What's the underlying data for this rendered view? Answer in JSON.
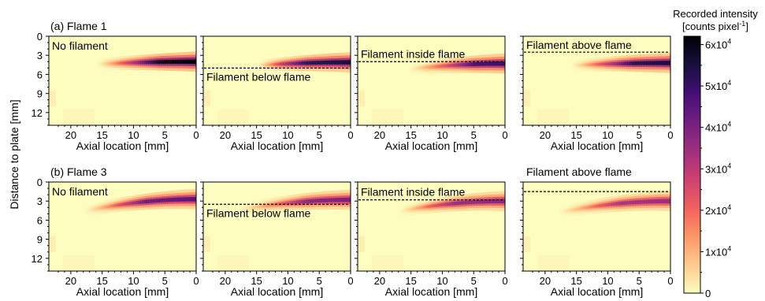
{
  "figure": {
    "ylabel": "Distance to plate [mm]",
    "xlabel": "Axial location [mm]"
  },
  "colorbar": {
    "title_line1": "Recorded intensity",
    "title_line2_prefix": "[counts pixel",
    "title_line2_sup": "-1",
    "title_line2_suffix": "]",
    "ticks": [
      {
        "value": 0,
        "mantissa": "0",
        "exp": ""
      },
      {
        "value": 10000,
        "mantissa": "1x10",
        "exp": "4"
      },
      {
        "value": 20000,
        "mantissa": "2x10",
        "exp": "4"
      },
      {
        "value": 30000,
        "mantissa": "3x10",
        "exp": "4"
      },
      {
        "value": 40000,
        "mantissa": "4x10",
        "exp": "4"
      },
      {
        "value": 50000,
        "mantissa": "5x10",
        "exp": "4"
      },
      {
        "value": 60000,
        "mantissa": "6x10",
        "exp": "4"
      }
    ],
    "range": [
      0,
      62000
    ],
    "colormap": [
      "#fcfdbf",
      "#feca8d",
      "#fd9668",
      "#f1605d",
      "#cd4071",
      "#9e2f7f",
      "#721f81",
      "#440f76",
      "#180f3d",
      "#000004"
    ]
  },
  "chart_data": {
    "type": "heatmap",
    "xlabel": "Axial location [mm]",
    "ylabel": "Distance to plate [mm]",
    "xlim": [
      23.5,
      0
    ],
    "ylim": [
      0,
      14
    ],
    "xticks": [
      20,
      15,
      10,
      5,
      0
    ],
    "yticks": [
      0,
      3,
      6,
      9,
      12
    ],
    "colorbar_label": "Recorded intensity [counts pixel-1]",
    "rows": [
      {
        "title": "(a) Flame 1",
        "panels": [
          {
            "label": "No filament",
            "filament_y": null,
            "flame_y_tip": 4.4,
            "flame_y_end": 4.0,
            "flame_start_x": 16,
            "core_start_x": 10,
            "peak": 62000
          },
          {
            "label": "Filament below flame",
            "filament_y": 5.0,
            "flame_y_tip": 4.6,
            "flame_y_end": 4.1,
            "flame_start_x": 15,
            "core_start_x": 11,
            "peak": 55000
          },
          {
            "label": "Filament inside flame",
            "filament_y": 4.0,
            "flame_y_tip": 5.2,
            "flame_y_end": 4.3,
            "flame_start_x": 15.5,
            "core_start_x": 9,
            "peak": 50000
          },
          {
            "label": "Filament above flame",
            "filament_y": 2.5,
            "flame_y_tip": 4.6,
            "flame_y_end": 4.2,
            "flame_start_x": 16,
            "core_start_x": 10,
            "peak": 55000
          }
        ]
      },
      {
        "title": "(b) Flame 3",
        "panels": [
          {
            "label": "No filament",
            "filament_y": null,
            "flame_y_tip": 4.6,
            "flame_y_end": 2.7,
            "flame_start_x": 18,
            "core_start_x": 12,
            "peak": 45000
          },
          {
            "label": "Filament below flame",
            "filament_y": 3.5,
            "flame_y_tip": 4.4,
            "flame_y_end": 2.8,
            "flame_start_x": 18,
            "core_start_x": 11,
            "peak": 40000
          },
          {
            "label": "Filament inside flame",
            "filament_y": 2.8,
            "flame_y_tip": 4.6,
            "flame_y_end": 3.0,
            "flame_start_x": 17,
            "core_start_x": 12,
            "peak": 38000
          },
          {
            "label": "Filament above flame",
            "filament_y": 1.5,
            "flame_y_tip": 4.8,
            "flame_y_end": 3.0,
            "flame_start_x": 18,
            "core_start_x": 12,
            "peak": 35000
          }
        ]
      }
    ]
  }
}
